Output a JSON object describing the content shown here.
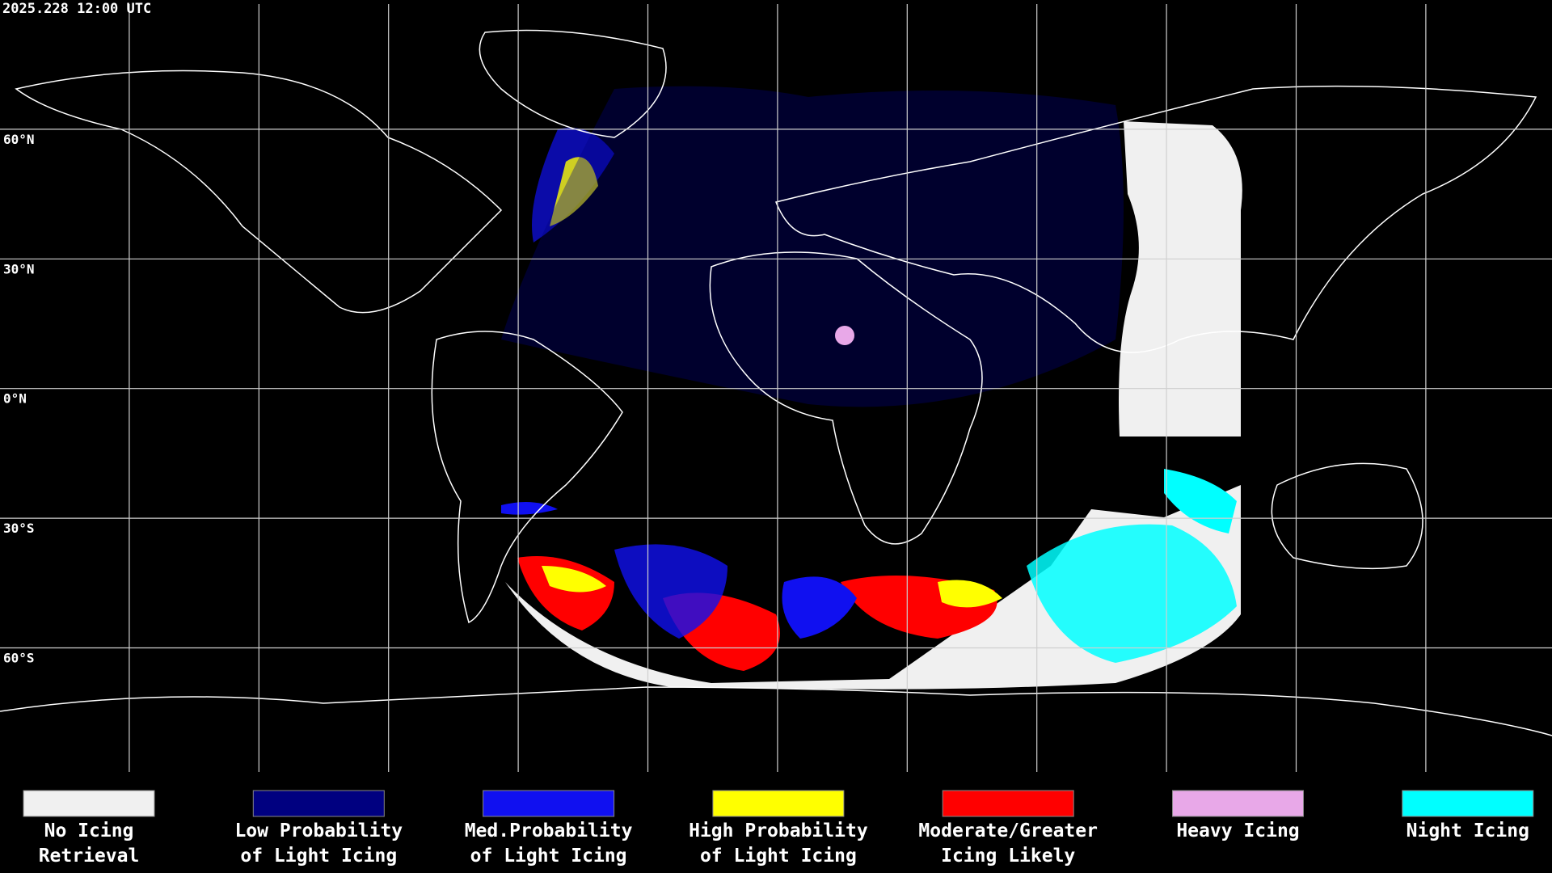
{
  "header": {
    "timestamp": "2025.228 12:00 UTC"
  },
  "grid": {
    "lat_labels": [
      "60°N",
      "30°N",
      "0°N",
      "30°S",
      "60°S"
    ]
  },
  "legend": [
    {
      "label": [
        "No Icing",
        "Retrieval"
      ],
      "color": "#f0f0f0"
    },
    {
      "label": [
        "Low Probability",
        "of Light Icing"
      ],
      "color": "#000080"
    },
    {
      "label": [
        "Med.Probability",
        "of Light Icing"
      ],
      "color": "#1010f0"
    },
    {
      "label": [
        "High Probability",
        "of Light Icing"
      ],
      "color": "#ffff00"
    },
    {
      "label": [
        "Moderate/Greater",
        "Icing Likely"
      ],
      "color": "#ff0000"
    },
    {
      "label": [
        "Heavy Icing"
      ],
      "color": "#e8a8e8"
    },
    {
      "label": [
        "Night Icing"
      ],
      "color": "#00ffff"
    }
  ]
}
